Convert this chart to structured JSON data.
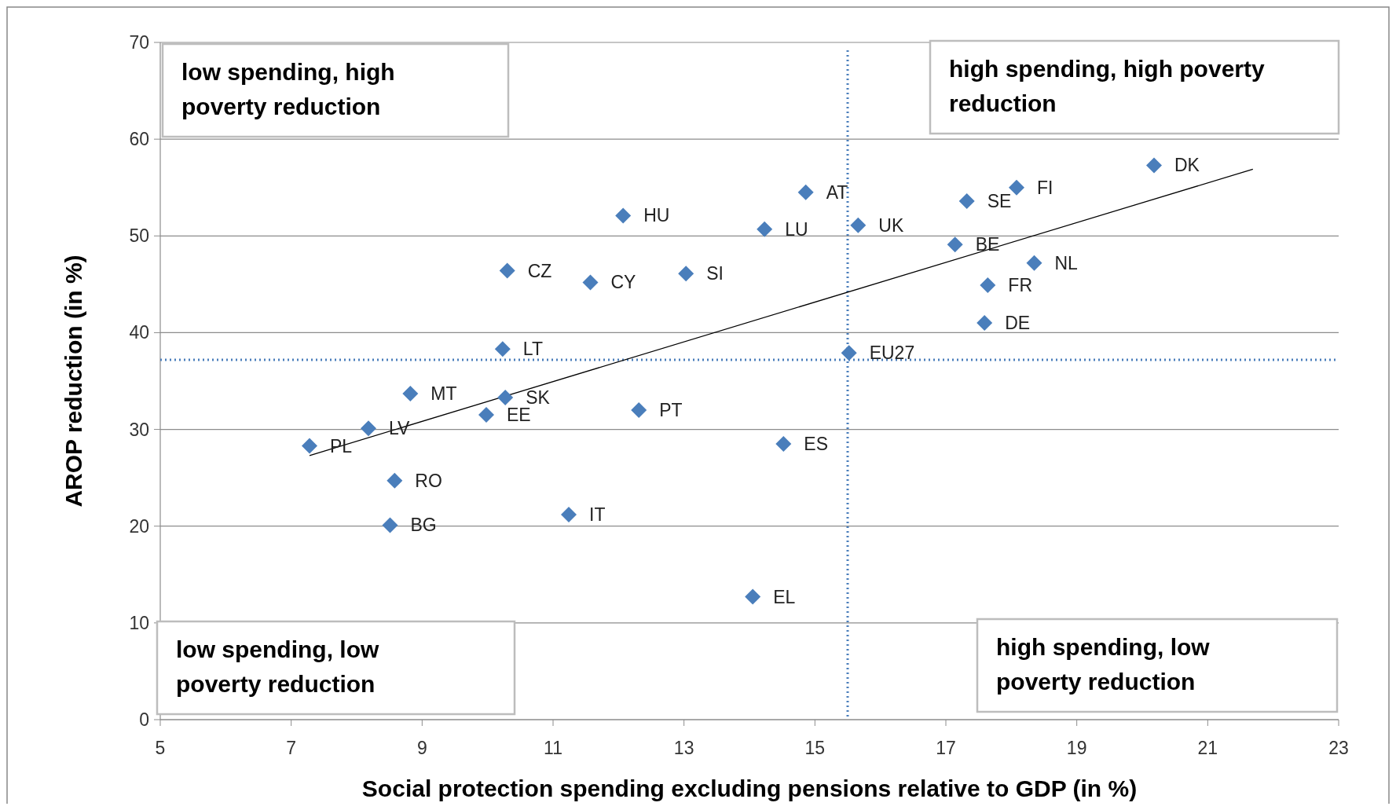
{
  "chart_data": {
    "type": "scatter",
    "xlabel": "Social protection spending excluding pensions relative to GDP (in %)",
    "ylabel": "AROP reduction (in %)",
    "xlim": [
      5,
      23
    ],
    "xticks": [
      5,
      7,
      9,
      11,
      13,
      15,
      17,
      19,
      21,
      23
    ],
    "ylim": [
      0,
      70
    ],
    "yticks": [
      0,
      10,
      20,
      30,
      40,
      50,
      60,
      70
    ],
    "grid": "y",
    "series": [
      {
        "marker": "diamond",
        "color": "#4a7ebb",
        "x": [
          20.18,
          18.08,
          17.32,
          14.86,
          15.66,
          14.23,
          12.07,
          17.14,
          18.35,
          17.64,
          17.59,
          10.3,
          11.57,
          13.03,
          10.23,
          15.52,
          8.82,
          10.27,
          9.98,
          12.31,
          8.18,
          7.28,
          14.52,
          8.58,
          8.51,
          11.24,
          14.05
        ],
        "values": [
          57.3,
          55.0,
          53.6,
          54.5,
          51.1,
          50.7,
          52.1,
          49.1,
          47.2,
          44.9,
          41.0,
          46.4,
          45.2,
          46.1,
          38.3,
          37.9,
          33.7,
          33.3,
          31.5,
          32.0,
          30.1,
          28.3,
          28.5,
          24.7,
          20.1,
          21.2,
          12.7
        ],
        "value_labels": [
          "DK",
          "FI",
          "SE",
          "AT",
          "UK",
          "LU",
          "HU",
          "BE",
          "NL",
          "FR",
          "DE",
          "CZ",
          "CY",
          "SI",
          "LT",
          "EU27",
          "MT",
          "SK",
          "EE",
          "PT",
          "LV",
          "PL",
          "ES",
          "RO",
          "BG",
          "IT",
          "EL"
        ]
      },
      {
        "type": "line",
        "color": "#000000",
        "x": [
          7.28,
          21.69
        ],
        "values": [
          27.3,
          56.9
        ],
        "line_style": "solid"
      }
    ],
    "ref_lines": [
      {
        "axis": "x",
        "value": 15.5,
        "color": "#4a7ebb",
        "line_style": "dotted"
      },
      {
        "axis": "y",
        "value": 37.2,
        "color": "#4a7ebb",
        "line_style": "dotted"
      }
    ],
    "annotations": [
      "low spending, high poverty reduction",
      "high spending, high poverty reduction",
      "low spending, low poverty reduction",
      "high spending, low poverty reduction"
    ]
  }
}
